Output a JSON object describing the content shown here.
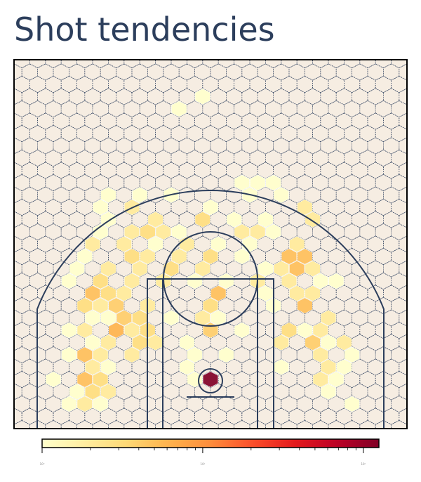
{
  "chart_data": {
    "type": "hexbin",
    "title": "Shot tendencies",
    "xlim": [
      -250,
      250
    ],
    "ylim": [
      -62.5,
      406.25
    ],
    "x": [
      -180,
      -160,
      -140,
      180,
      -170,
      -150,
      -130,
      150,
      -200,
      -160,
      -140,
      -20,
      0,
      140,
      160,
      -150,
      -130,
      -30,
      90,
      150,
      170,
      -180,
      -160,
      -140,
      -100,
      -20,
      20,
      140,
      180,
      -150,
      -130,
      -90,
      -70,
      -30,
      90,
      130,
      150,
      170,
      -180,
      -160,
      -120,
      -100,
      -80,
      0,
      40,
      100,
      120,
      140,
      -150,
      -130,
      -110,
      -90,
      -50,
      -10,
      10,
      150,
      -160,
      -140,
      -120,
      -80,
      0,
      80,
      120,
      -150,
      -130,
      -110,
      10,
      70,
      110,
      130,
      -180,
      -140,
      -100,
      -60,
      -20,
      20,
      60,
      100,
      140,
      160,
      -170,
      -130,
      -90,
      -50,
      -10,
      70,
      90,
      110,
      130,
      -160,
      -100,
      -80,
      -40,
      0,
      40,
      100,
      120,
      -150,
      -110,
      -70,
      -30,
      10,
      50,
      110,
      -140,
      -100,
      -80,
      -60,
      -40,
      40,
      60,
      80,
      -130,
      -70,
      -10,
      30,
      70,
      130,
      -140,
      -100,
      0,
      120,
      -130,
      -90,
      -50,
      50,
      90,
      40,
      60,
      80,
      -40,
      -10
    ],
    "y": [
      -31.25,
      -31.25,
      -31.25,
      -31.25,
      -15.625,
      -15.625,
      -15.625,
      -15.625,
      0,
      0,
      0,
      0,
      0,
      0,
      0,
      15.625,
      15.625,
      15.625,
      15.625,
      15.625,
      15.625,
      31.25,
      31.25,
      31.25,
      31.25,
      31.25,
      31.25,
      31.25,
      31.25,
      46.875,
      46.875,
      46.875,
      46.875,
      46.875,
      46.875,
      46.875,
      46.875,
      46.875,
      62.5,
      62.5,
      62.5,
      62.5,
      62.5,
      62.5,
      62.5,
      62.5,
      62.5,
      62.5,
      78.125,
      78.125,
      78.125,
      78.125,
      78.125,
      78.125,
      78.125,
      78.125,
      93.75,
      93.75,
      93.75,
      93.75,
      93.75,
      93.75,
      93.75,
      109.375,
      109.375,
      109.375,
      109.375,
      109.375,
      109.375,
      109.375,
      125,
      125,
      125,
      125,
      125,
      125,
      125,
      125,
      125,
      125,
      140.625,
      140.625,
      140.625,
      140.625,
      140.625,
      140.625,
      140.625,
      140.625,
      140.625,
      156.25,
      156.25,
      156.25,
      156.25,
      156.25,
      156.25,
      156.25,
      156.25,
      171.875,
      171.875,
      171.875,
      171.875,
      171.875,
      171.875,
      171.875,
      187.5,
      187.5,
      187.5,
      187.5,
      187.5,
      187.5,
      187.5,
      187.5,
      203.125,
      203.125,
      203.125,
      203.125,
      203.125,
      203.125,
      218.75,
      218.75,
      218.75,
      218.75,
      234.375,
      234.375,
      234.375,
      234.375,
      234.375,
      250,
      250,
      250,
      343.75,
      359.375
    ],
    "values": [
      1,
      2,
      1,
      1,
      1,
      3,
      2,
      1,
      1,
      5,
      3,
      1,
      125,
      2,
      1,
      2,
      1,
      1,
      1,
      2,
      1,
      1,
      5,
      2,
      2,
      1,
      1,
      2,
      1,
      1,
      2,
      3,
      2,
      1,
      2,
      4,
      1,
      2,
      1,
      2,
      6,
      2,
      3,
      4,
      1,
      3,
      1,
      2,
      1,
      1,
      4,
      3,
      1,
      2,
      1,
      2,
      3,
      2,
      4,
      2,
      3,
      1,
      5,
      5,
      3,
      2,
      5,
      1,
      2,
      2,
      1,
      3,
      2,
      2,
      1,
      1,
      2,
      2,
      1,
      1,
      1,
      2,
      2,
      3,
      2,
      1,
      2,
      5,
      2,
      1,
      3,
      2,
      2,
      3,
      1,
      5,
      5,
      2,
      2,
      1,
      2,
      1,
      1,
      2,
      1,
      2,
      3,
      2,
      1,
      2,
      2,
      1,
      1,
      2,
      3,
      1,
      1,
      2,
      1,
      2,
      1,
      2,
      1,
      1,
      1,
      1,
      1,
      1,
      1,
      1,
      1,
      1
    ],
    "colormap": "YlOrRd",
    "log_scale": true,
    "clim": [
      1,
      125
    ],
    "cticks": [
      {
        "value": 1,
        "label": "10⁰"
      },
      {
        "value": 10,
        "label": "10¹"
      },
      {
        "value": 100,
        "label": "10²"
      }
    ],
    "cminorticks": [
      2,
      3,
      4,
      5,
      6,
      7,
      8,
      9,
      20,
      30,
      40,
      50,
      60,
      70,
      80,
      90
    ]
  }
}
